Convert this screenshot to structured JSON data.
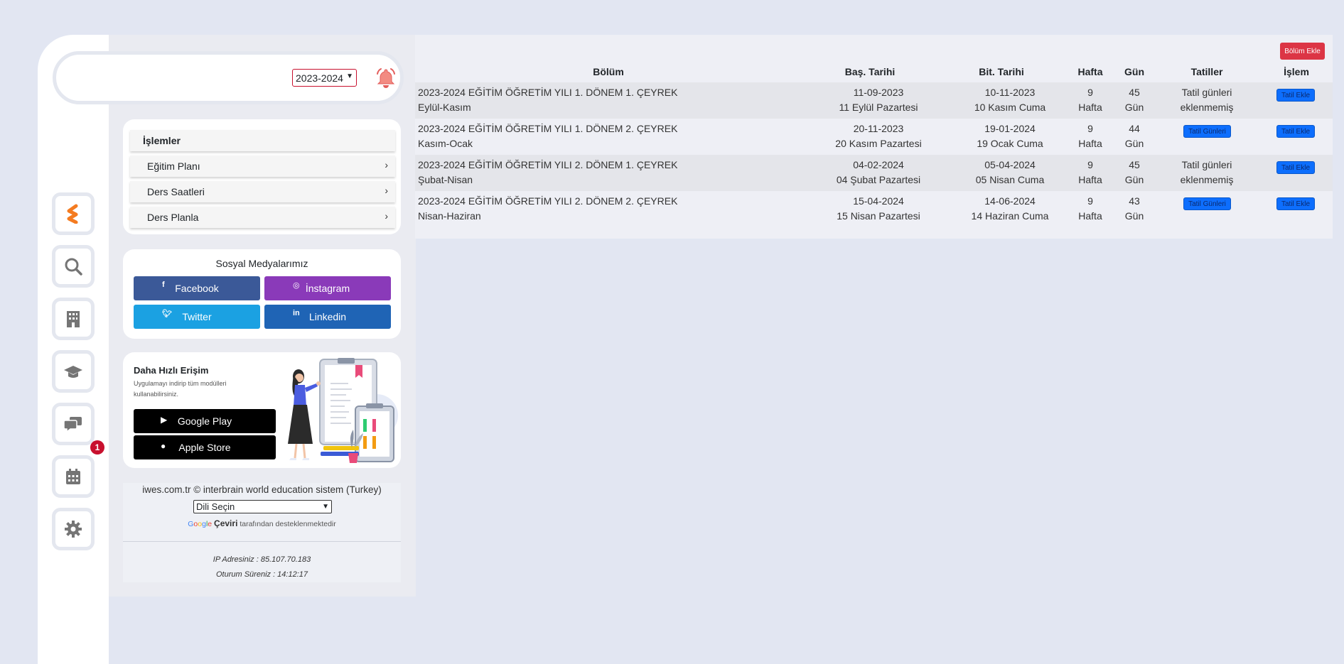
{
  "header": {
    "year_select": "2023-2024"
  },
  "menu": {
    "title": "İşlemler",
    "items": [
      {
        "label": "Eğitim Planı"
      },
      {
        "label": "Ders Saatleri"
      },
      {
        "label": "Ders Planla"
      }
    ]
  },
  "social": {
    "title": "Sosyal Medyalarımız",
    "buttons": [
      {
        "label": "Facebook",
        "icon": "facebook-icon",
        "color": "#3b5998"
      },
      {
        "label": "İnstagram",
        "icon": "instagram-icon",
        "color": "#8a3ab9"
      },
      {
        "label": "Twitter",
        "icon": "twitter-icon",
        "color": "#1da1f2"
      },
      {
        "label": "Linkedin",
        "icon": "linkedin-icon",
        "color": "#1f64b5"
      }
    ]
  },
  "app": {
    "title": "Daha Hızlı Erişim",
    "subtitle": "Uygulamayı indirip tüm modülleri kullanabilirsiniz.",
    "google_play": "Google Play",
    "apple_store": "Apple Store"
  },
  "footer": {
    "copyright": "iwes.com.tr © interbrain world education sistem (Turkey)",
    "lang_select": "Dili Seçin",
    "gtrans_brand": "Çeviri",
    "gtrans_suffix": "tarafından desteklenmektedir",
    "ip": "IP Adresiniz : 85.107.70.183",
    "session": "Oturum Süreniz : 14:12:17"
  },
  "notifications": {
    "message_badge": "1"
  },
  "table": {
    "add_button": "Bölüm Ekle",
    "headers": [
      "Bölüm",
      "Baş. Tarihi",
      "Bit. Tarihi",
      "Hafta",
      "Gün",
      "Tatiller",
      "İşlem"
    ],
    "rows": [
      {
        "name": "2023-2024 EĞİTİM ÖĞRETİM YILI 1. DÖNEM 1. ÇEYREK",
        "months": "Eylül-Kasım",
        "start": "11-09-2023",
        "start_day": "11 Eylül Pazartesi",
        "end": "10-11-2023",
        "end_day": "10 Kasım Cuma",
        "weeks": "9",
        "weeks_unit": "Hafta",
        "days": "45",
        "days_unit": "Gün",
        "holiday_line1": "Tatil günleri",
        "holiday_line2": "eklenmemiş",
        "holiday_button": "",
        "action": "Tatil Ekle"
      },
      {
        "name": "2023-2024 EĞİTİM ÖĞRETİM YILI 1. DÖNEM 2. ÇEYREK",
        "months": "Kasım-Ocak",
        "start": "20-11-2023",
        "start_day": "20 Kasım Pazartesi",
        "end": "19-01-2024",
        "end_day": "19 Ocak Cuma",
        "weeks": "9",
        "weeks_unit": "Hafta",
        "days": "44",
        "days_unit": "Gün",
        "holiday_line1": "",
        "holiday_line2": "",
        "holiday_button": "Tatil Günleri",
        "action": "Tatil Ekle"
      },
      {
        "name": "2023-2024 EĞİTİM ÖĞRETİM YILI 2. DÖNEM 1. ÇEYREK",
        "months": "Şubat-Nisan",
        "start": "04-02-2024",
        "start_day": "04 Şubat Pazartesi",
        "end": "05-04-2024",
        "end_day": "05 Nisan Cuma",
        "weeks": "9",
        "weeks_unit": "Hafta",
        "days": "45",
        "days_unit": "Gün",
        "holiday_line1": "Tatil günleri",
        "holiday_line2": "eklenmemiş",
        "holiday_button": "",
        "action": "Tatil Ekle"
      },
      {
        "name": "2023-2024 EĞİTİM ÖĞRETİM YILI 2. DÖNEM 2. ÇEYREK",
        "months": "Nisan-Haziran",
        "start": "15-04-2024",
        "start_day": "15 Nisan Pazartesi",
        "end": "14-06-2024",
        "end_day": "14 Haziran Cuma",
        "weeks": "9",
        "weeks_unit": "Hafta",
        "days": "43",
        "days_unit": "Gün",
        "holiday_line1": "",
        "holiday_line2": "",
        "holiday_button": "Tatil Günleri",
        "action": "Tatil Ekle"
      }
    ]
  }
}
